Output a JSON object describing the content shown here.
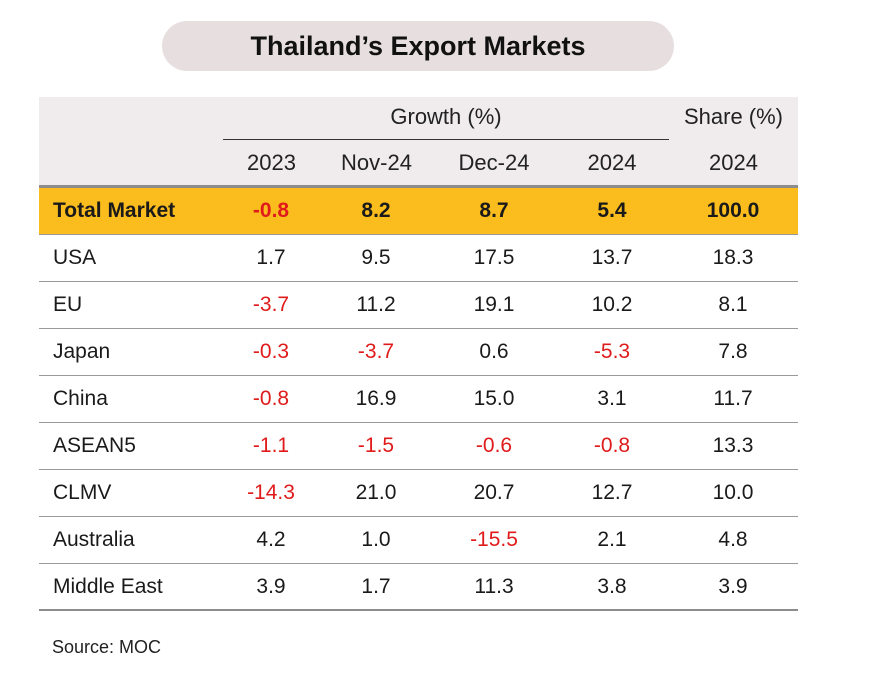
{
  "title": "Thailand’s Export Markets",
  "source": "Source: MOC",
  "colors": {
    "total_row": "#fbbd1d",
    "negative": "#e01b1b",
    "header_bg": "#f0eced"
  },
  "chart_data": {
    "type": "table",
    "title": "Thailand’s Export Markets",
    "column_groups": [
      {
        "label": "Growth (%)",
        "columns": [
          "2023",
          "Nov-24",
          "Dec-24",
          "2024"
        ]
      },
      {
        "label": "Share (%)",
        "columns": [
          "2024"
        ]
      }
    ],
    "rows": [
      {
        "label": "Total Market",
        "values": [
          "-0.8",
          "8.2",
          "8.7",
          "5.4",
          "100.0"
        ]
      },
      {
        "label": "USA",
        "values": [
          "1.7",
          "9.5",
          "17.5",
          "13.7",
          "18.3"
        ]
      },
      {
        "label": "EU",
        "values": [
          "-3.7",
          "11.2",
          "19.1",
          "10.2",
          "8.1"
        ]
      },
      {
        "label": "Japan",
        "values": [
          "-0.3",
          "-3.7",
          "0.6",
          "-5.3",
          "7.8"
        ]
      },
      {
        "label": "China",
        "values": [
          "-0.8",
          "16.9",
          "15.0",
          "3.1",
          "11.7"
        ]
      },
      {
        "label": "ASEAN5",
        "values": [
          "-1.1",
          "-1.5",
          "-0.6",
          "-0.8",
          "13.3"
        ]
      },
      {
        "label": "CLMV",
        "values": [
          "-14.3",
          "21.0",
          "20.7",
          "12.7",
          "10.0"
        ]
      },
      {
        "label": "Australia",
        "values": [
          "4.2",
          "1.0",
          "-15.5",
          "2.1",
          "4.8"
        ]
      },
      {
        "label": "Middle East",
        "values": [
          "3.9",
          "1.7",
          "11.3",
          "3.8",
          "3.9"
        ]
      }
    ]
  }
}
